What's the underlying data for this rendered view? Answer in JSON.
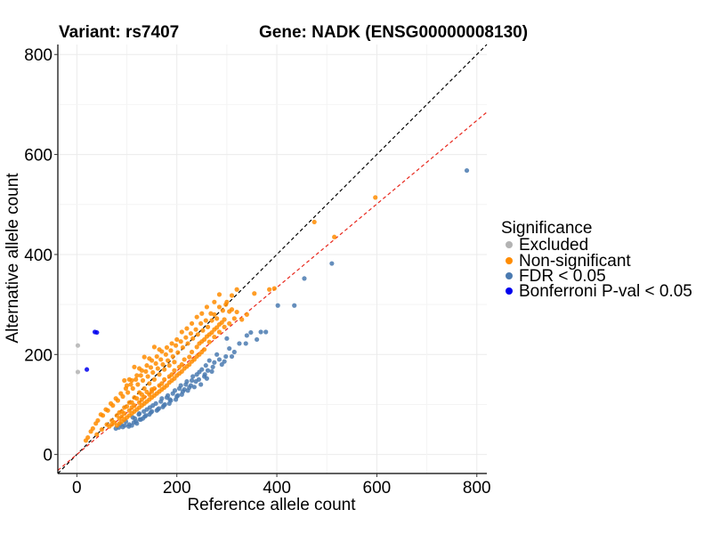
{
  "chart_data": {
    "type": "scatter",
    "title_left": "Variant: rs7407",
    "title_right": "Gene: NADK (ENSG00000008130)",
    "xlabel": "Reference allele count",
    "ylabel": "Alternative allele count",
    "xlim": [
      -38,
      820
    ],
    "ylim": [
      -38,
      820
    ],
    "xticks": [
      0,
      200,
      400,
      600,
      800
    ],
    "yticks": [
      0,
      200,
      400,
      600,
      800
    ],
    "grid": true,
    "legend": {
      "title": "Significance",
      "placement": "right",
      "entries": [
        {
          "label": "Excluded",
          "color": "#b3b3b3"
        },
        {
          "label": "Non-significant",
          "color": "#ff8c00"
        },
        {
          "label": "FDR < 0.05",
          "color": "#4a7ab0"
        },
        {
          "label": "Bonferroni P-val < 0.05",
          "color": "#0000ee"
        }
      ]
    },
    "reference_lines": [
      {
        "name": "identity",
        "slope": 1.0,
        "intercept": 0,
        "color": "#000000",
        "style": "dashed"
      },
      {
        "name": "fit",
        "slope": 0.835,
        "intercept": 0,
        "color": "#e8271c",
        "style": "dashed"
      }
    ],
    "series": [
      {
        "name": "Excluded",
        "color": "#b3b3b3",
        "points": [
          [
            2,
            218
          ],
          [
            2,
            165
          ]
        ]
      },
      {
        "name": "Bonferroni P-val < 0.05",
        "color": "#0000ee",
        "points": [
          [
            36,
            245
          ],
          [
            40,
            244
          ],
          [
            20,
            170
          ]
        ]
      },
      {
        "name": "FDR < 0.05",
        "color": "#4a7ab0",
        "points": [
          [
            780,
            568
          ],
          [
            510,
            382
          ],
          [
            455,
            352
          ],
          [
            435,
            298
          ],
          [
            402,
            298
          ],
          [
            378,
            245
          ],
          [
            368,
            245
          ],
          [
            338,
            222
          ],
          [
            305,
            212
          ],
          [
            300,
            232
          ],
          [
            290,
            180
          ],
          [
            280,
            200
          ],
          [
            272,
            175
          ],
          [
            265,
            188
          ],
          [
            260,
            152
          ],
          [
            250,
            170
          ],
          [
            248,
            140
          ],
          [
            240,
            160
          ],
          [
            235,
            135
          ],
          [
            230,
            148
          ],
          [
            222,
            128
          ],
          [
            218,
            140
          ],
          [
            210,
            120
          ],
          [
            205,
            132
          ],
          [
            198,
            110
          ],
          [
            192,
            122
          ],
          [
            185,
            102
          ],
          [
            180,
            114
          ],
          [
            172,
            95
          ],
          [
            168,
            106
          ],
          [
            160,
            88
          ],
          [
            152,
            98
          ],
          [
            145,
            80
          ],
          [
            140,
            90
          ],
          [
            132,
            72
          ],
          [
            125,
            82
          ],
          [
            118,
            66
          ],
          [
            112,
            74
          ],
          [
            105,
            60
          ],
          [
            98,
            66
          ],
          [
            92,
            55
          ],
          [
            88,
            60
          ],
          [
            262,
            168
          ],
          [
            256,
            160
          ],
          [
            244,
            150
          ],
          [
            228,
            138
          ],
          [
            215,
            130
          ],
          [
            202,
            118
          ],
          [
            188,
            108
          ],
          [
            176,
            100
          ],
          [
            164,
            92
          ],
          [
            148,
            84
          ],
          [
            136,
            76
          ],
          [
            128,
            70
          ],
          [
            120,
            62
          ],
          [
            110,
            58
          ],
          [
            325,
            222
          ],
          [
            315,
            205
          ],
          [
            298,
            196
          ],
          [
            285,
            190
          ],
          [
            275,
            184
          ],
          [
            258,
            178
          ],
          [
            245,
            165
          ],
          [
            232,
            156
          ],
          [
            220,
            146
          ],
          [
            208,
            138
          ],
          [
            196,
            128
          ],
          [
            182,
            118
          ],
          [
            170,
            112
          ],
          [
            158,
            102
          ],
          [
            146,
            94
          ],
          [
            134,
            86
          ],
          [
            124,
            80
          ],
          [
            116,
            72
          ],
          [
            340,
            238
          ],
          [
            348,
            244
          ],
          [
            360,
            230
          ],
          [
            310,
            196
          ],
          [
            295,
            186
          ],
          [
            270,
            166
          ],
          [
            255,
            156
          ],
          [
            238,
            146
          ],
          [
            225,
            134
          ],
          [
            212,
            126
          ],
          [
            200,
            116
          ],
          [
            186,
            110
          ],
          [
            174,
            98
          ],
          [
            162,
            90
          ],
          [
            150,
            86
          ],
          [
            138,
            78
          ],
          [
            126,
            70
          ],
          [
            114,
            64
          ],
          [
            104,
            56
          ],
          [
            96,
            58
          ],
          [
            84,
            54
          ],
          [
            78,
            52
          ]
        ]
      },
      {
        "name": "Non-significant",
        "color": "#ff8c00",
        "points": [
          [
            597,
            514
          ],
          [
            515,
            435
          ],
          [
            475,
            465
          ],
          [
            395,
            332
          ],
          [
            385,
            330
          ],
          [
            355,
            322
          ],
          [
            320,
            330
          ],
          [
            310,
            318
          ],
          [
            305,
            286
          ],
          [
            298,
            300
          ],
          [
            292,
            288
          ],
          [
            285,
            295
          ],
          [
            280,
            272
          ],
          [
            275,
            280
          ],
          [
            270,
            268
          ],
          [
            268,
            282
          ],
          [
            262,
            255
          ],
          [
            258,
            268
          ],
          [
            252,
            248
          ],
          [
            248,
            262
          ],
          [
            242,
            240
          ],
          [
            238,
            250
          ],
          [
            232,
            232
          ],
          [
            228,
            242
          ],
          [
            222,
            222
          ],
          [
            218,
            234
          ],
          [
            212,
            214
          ],
          [
            208,
            226
          ],
          [
            202,
            204
          ],
          [
            198,
            218
          ],
          [
            192,
            196
          ],
          [
            188,
            208
          ],
          [
            182,
            188
          ],
          [
            178,
            200
          ],
          [
            172,
            180
          ],
          [
            168,
            190
          ],
          [
            162,
            172
          ],
          [
            158,
            182
          ],
          [
            152,
            164
          ],
          [
            148,
            174
          ],
          [
            142,
            156
          ],
          [
            138,
            166
          ],
          [
            132,
            148
          ],
          [
            128,
            158
          ],
          [
            122,
            140
          ],
          [
            118,
            150
          ],
          [
            112,
            132
          ],
          [
            108,
            140
          ],
          [
            102,
            124
          ],
          [
            98,
            132
          ],
          [
            92,
            116
          ],
          [
            88,
            122
          ],
          [
            82,
            108
          ],
          [
            78,
            112
          ],
          [
            72,
            98
          ],
          [
            68,
            102
          ],
          [
            62,
            88
          ],
          [
            58,
            90
          ],
          [
            52,
            78
          ],
          [
            48,
            80
          ],
          [
            42,
            68
          ],
          [
            38,
            62
          ],
          [
            32,
            52
          ],
          [
            28,
            46
          ],
          [
            22,
            34
          ],
          [
            18,
            28
          ],
          [
            230,
            205
          ],
          [
            225,
            195
          ],
          [
            215,
            190
          ],
          [
            210,
            180
          ],
          [
            205,
            175
          ],
          [
            195,
            168
          ],
          [
            190,
            160
          ],
          [
            185,
            156
          ],
          [
            175,
            150
          ],
          [
            170,
            142
          ],
          [
            165,
            138
          ],
          [
            155,
            132
          ],
          [
            150,
            126
          ],
          [
            145,
            120
          ],
          [
            135,
            115
          ],
          [
            130,
            110
          ],
          [
            125,
            104
          ],
          [
            115,
            98
          ],
          [
            110,
            94
          ],
          [
            105,
            88
          ],
          [
            95,
            82
          ],
          [
            90,
            76
          ],
          [
            85,
            72
          ],
          [
            75,
            64
          ],
          [
            70,
            60
          ],
          [
            65,
            56
          ],
          [
            240,
            215
          ],
          [
            245,
            222
          ],
          [
            250,
            226
          ],
          [
            255,
            230
          ],
          [
            260,
            236
          ],
          [
            265,
            240
          ],
          [
            270,
            244
          ],
          [
            275,
            250
          ],
          [
            280,
            254
          ],
          [
            285,
            260
          ],
          [
            290,
            264
          ],
          [
            295,
            270
          ],
          [
            255,
            210
          ],
          [
            250,
            205
          ],
          [
            245,
            200
          ],
          [
            240,
            196
          ],
          [
            235,
            190
          ],
          [
            230,
            186
          ],
          [
            225,
            180
          ],
          [
            220,
            176
          ],
          [
            215,
            172
          ],
          [
            210,
            166
          ],
          [
            205,
            162
          ],
          [
            200,
            158
          ],
          [
            195,
            152
          ],
          [
            190,
            148
          ],
          [
            185,
            144
          ],
          [
            180,
            138
          ],
          [
            175,
            134
          ],
          [
            170,
            130
          ],
          [
            165,
            126
          ],
          [
            160,
            122
          ],
          [
            155,
            118
          ],
          [
            150,
            114
          ],
          [
            145,
            110
          ],
          [
            140,
            106
          ],
          [
            135,
            102
          ],
          [
            130,
            98
          ],
          [
            125,
            94
          ],
          [
            120,
            90
          ],
          [
            115,
            86
          ],
          [
            110,
            82
          ],
          [
            105,
            78
          ],
          [
            100,
            74
          ],
          [
            95,
            70
          ],
          [
            90,
            66
          ],
          [
            85,
            62
          ],
          [
            80,
            58
          ],
          [
            200,
            230
          ],
          [
            190,
            222
          ],
          [
            180,
            214
          ],
          [
            170,
            206
          ],
          [
            160,
            196
          ],
          [
            150,
            188
          ],
          [
            140,
            178
          ],
          [
            130,
            168
          ],
          [
            120,
            158
          ],
          [
            110,
            148
          ],
          [
            100,
            138
          ],
          [
            165,
            210
          ],
          [
            145,
            192
          ],
          [
            125,
            172
          ],
          [
            105,
            150
          ],
          [
            155,
            215
          ],
          [
            135,
            195
          ],
          [
            115,
            175
          ],
          [
            95,
            148
          ],
          [
            275,
            305
          ],
          [
            285,
            320
          ],
          [
            260,
            295
          ],
          [
            250,
            282
          ],
          [
            240,
            275
          ],
          [
            230,
            262
          ],
          [
            220,
            252
          ],
          [
            210,
            245
          ],
          [
            300,
            305
          ],
          [
            310,
            290
          ],
          [
            320,
            285
          ],
          [
            330,
            270
          ],
          [
            340,
            280
          ],
          [
            265,
            225
          ],
          [
            275,
            235
          ],
          [
            285,
            245
          ],
          [
            295,
            255
          ],
          [
            305,
            262
          ],
          [
            315,
            272
          ],
          [
            150,
            130
          ],
          [
            140,
            125
          ],
          [
            130,
            120
          ],
          [
            120,
            112
          ],
          [
            110,
            104
          ],
          [
            100,
            96
          ],
          [
            90,
            86
          ],
          [
            80,
            78
          ],
          [
            70,
            68
          ],
          [
            60,
            60
          ],
          [
            50,
            50
          ],
          [
            40,
            40
          ],
          [
            195,
            185
          ],
          [
            185,
            178
          ],
          [
            175,
            170
          ],
          [
            165,
            160
          ],
          [
            155,
            150
          ],
          [
            145,
            142
          ],
          [
            135,
            132
          ],
          [
            125,
            124
          ],
          [
            115,
            114
          ],
          [
            105,
            104
          ],
          [
            95,
            94
          ],
          [
            85,
            84
          ]
        ]
      }
    ]
  }
}
